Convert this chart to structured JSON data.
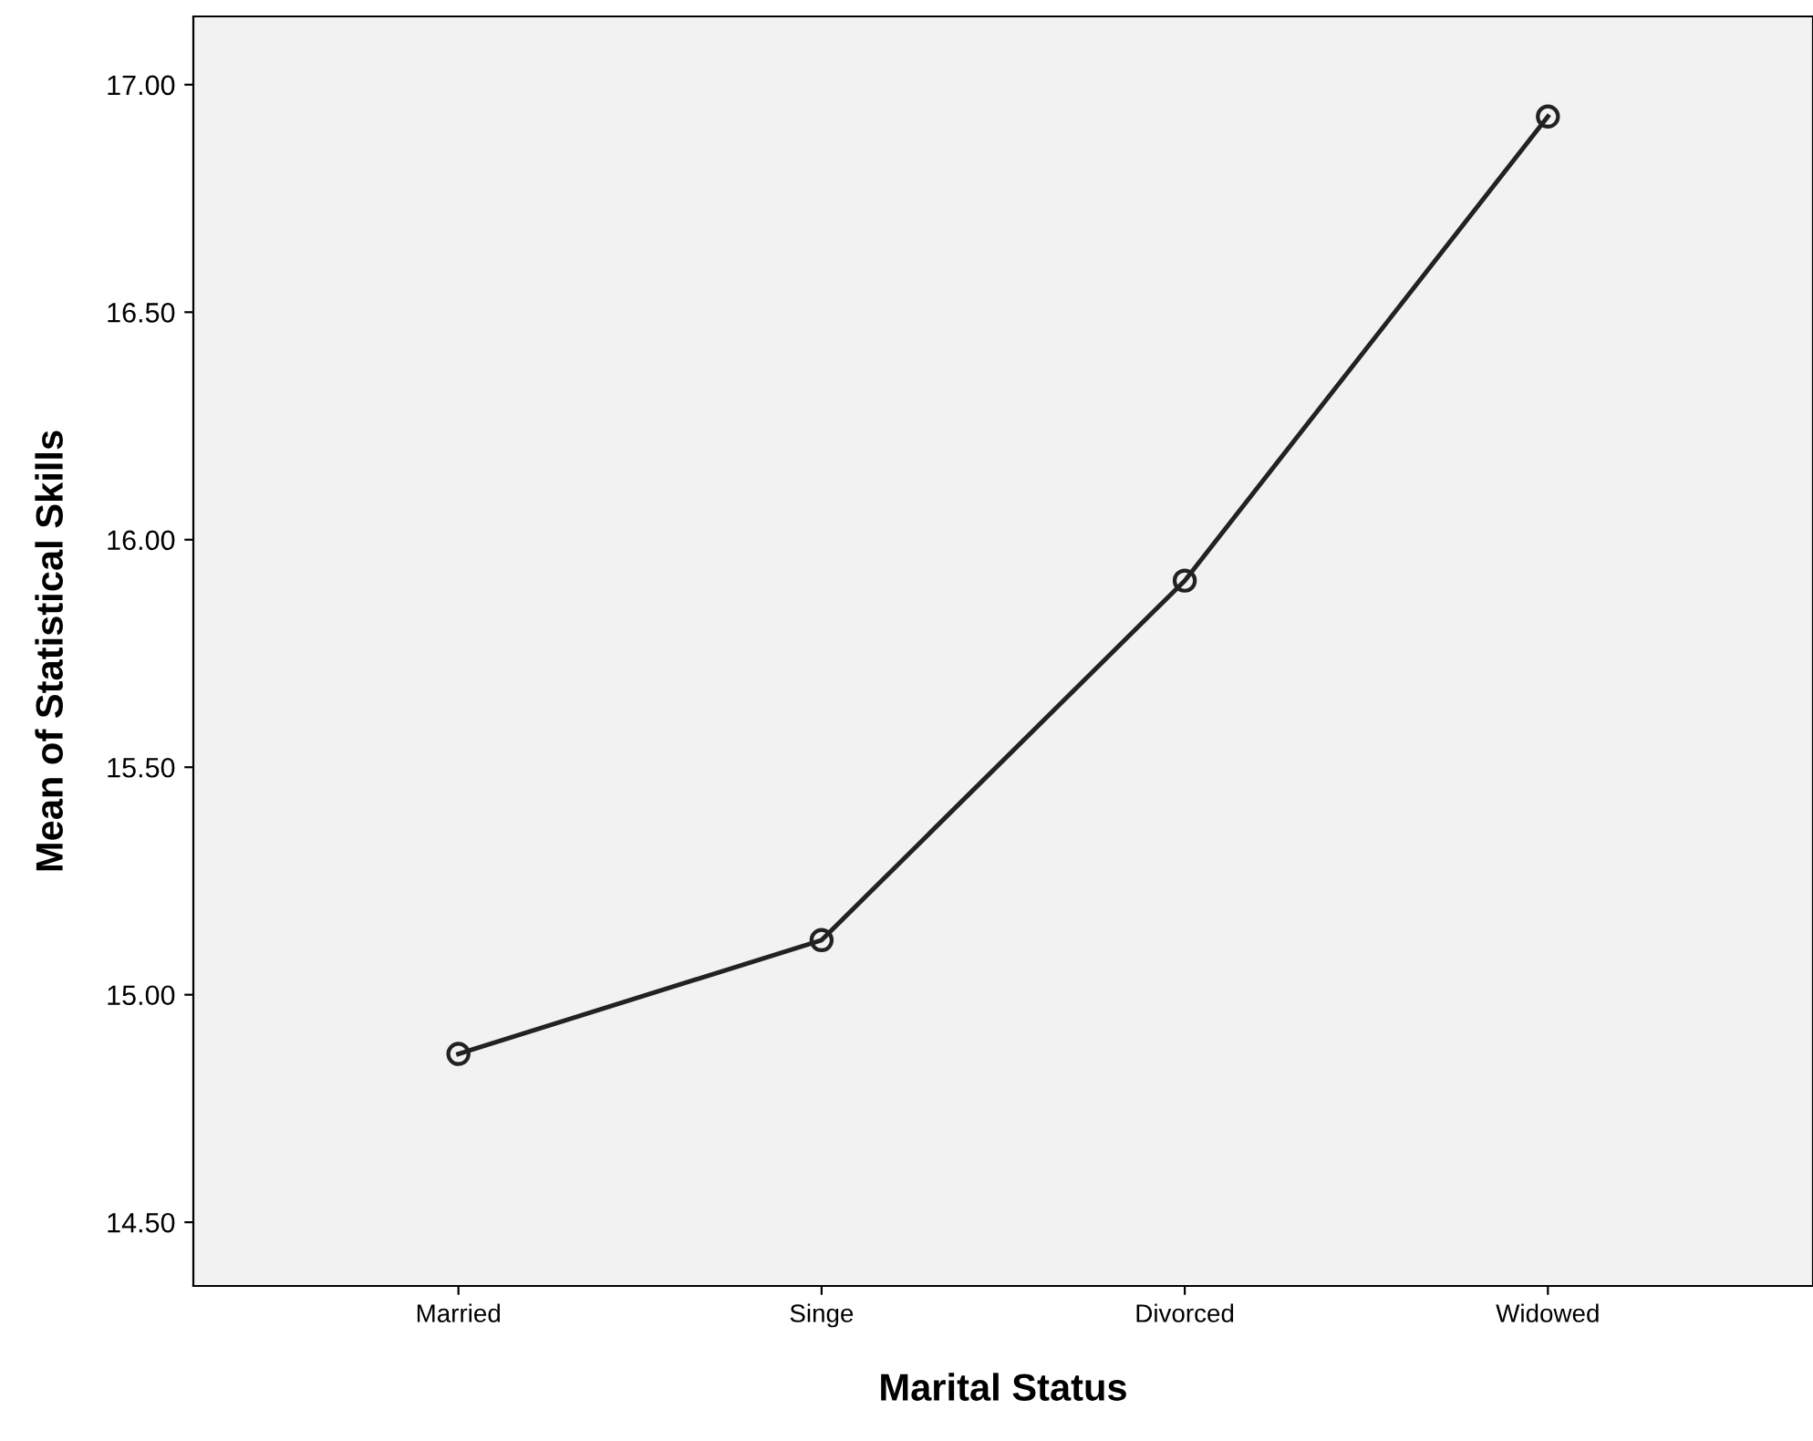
{
  "chart_data": {
    "type": "line",
    "xlabel": "Marital Status",
    "ylabel": "Mean of Statistical Skills",
    "categories": [
      "Married",
      "Singe",
      "Divorced",
      "Widowed"
    ],
    "series": [
      {
        "color": "#222222",
        "values": [
          14.87,
          15.12,
          15.91,
          16.93
        ]
      }
    ],
    "ylim": [
      14.36,
      17.15
    ],
    "yticks": [
      {
        "value": 14.5,
        "label": "14.50"
      },
      {
        "value": 15.0,
        "label": "15.00"
      },
      {
        "value": 15.5,
        "label": "15.50"
      },
      {
        "value": 16.0,
        "label": "16.00"
      },
      {
        "value": 16.5,
        "label": "16.50"
      },
      {
        "value": 17.0,
        "label": "17.00"
      }
    ],
    "marker": "circle",
    "line_style": "solid",
    "grid": false,
    "legend": false
  }
}
